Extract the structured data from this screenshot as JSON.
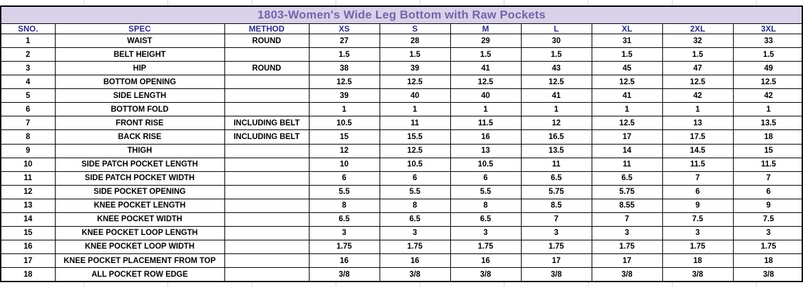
{
  "title": "1803-Women's Wide Leg Bottom with Raw Pockets",
  "colors": {
    "title_bg": "#d9d2e9",
    "title_text": "#7563a9",
    "header_text": "#2b2b86",
    "body_text": "#000000",
    "border": "#000000"
  },
  "table": {
    "columns": [
      "SNO.",
      "SPEC",
      "METHOD",
      "XS",
      "S",
      "M",
      "L",
      "XL",
      "2XL",
      "3XL"
    ],
    "rows": [
      {
        "sno": "1",
        "spec": "WAIST",
        "method": "ROUND",
        "values": [
          "27",
          "28",
          "29",
          "30",
          "31",
          "32",
          "33"
        ]
      },
      {
        "sno": "2",
        "spec": "BELT HEIGHT",
        "method": "",
        "values": [
          "1.5",
          "1.5",
          "1.5",
          "1.5",
          "1.5",
          "1.5",
          "1.5"
        ]
      },
      {
        "sno": "3",
        "spec": "HIP",
        "method": "ROUND",
        "values": [
          "38",
          "39",
          "41",
          "43",
          "45",
          "47",
          "49"
        ]
      },
      {
        "sno": "4",
        "spec": "BOTTOM OPENING",
        "method": "",
        "values": [
          "12.5",
          "12.5",
          "12.5",
          "12.5",
          "12.5",
          "12.5",
          "12.5"
        ]
      },
      {
        "sno": "5",
        "spec": "SIDE LENGTH",
        "method": "",
        "values": [
          "39",
          "40",
          "40",
          "41",
          "41",
          "42",
          "42"
        ]
      },
      {
        "sno": "6",
        "spec": "BOTTOM FOLD",
        "method": "",
        "values": [
          "1",
          "1",
          "1",
          "1",
          "1",
          "1",
          "1"
        ]
      },
      {
        "sno": "7",
        "spec": "FRONT RISE",
        "method": "INCLUDING BELT",
        "values": [
          "10.5",
          "11",
          "11.5",
          "12",
          "12.5",
          "13",
          "13.5"
        ]
      },
      {
        "sno": "8",
        "spec": "BACK RISE",
        "method": "INCLUDING BELT",
        "values": [
          "15",
          "15.5",
          "16",
          "16.5",
          "17",
          "17.5",
          "18"
        ]
      },
      {
        "sno": "9",
        "spec": "THIGH",
        "method": "",
        "values": [
          "12",
          "12.5",
          "13",
          "13.5",
          "14",
          "14.5",
          "15"
        ]
      },
      {
        "sno": "10",
        "spec": "SIDE PATCH  POCKET LENGTH",
        "method": "",
        "values": [
          "10",
          "10.5",
          "10.5",
          "11",
          "11",
          "11.5",
          "11.5"
        ]
      },
      {
        "sno": "11",
        "spec": "SIDE PATCH POCKET WIDTH",
        "method": "",
        "values": [
          "6",
          "6",
          "6",
          "6.5",
          "6.5",
          "7",
          "7"
        ]
      },
      {
        "sno": "12",
        "spec": "SIDE POCKET OPENING",
        "method": "",
        "values": [
          "5.5",
          "5.5",
          "5.5",
          "5.75",
          "5.75",
          "6",
          "6"
        ]
      },
      {
        "sno": "13",
        "spec": "KNEE POCKET LENGTH",
        "method": "",
        "values": [
          "8",
          "8",
          "8",
          "8.5",
          "8.55",
          "9",
          "9"
        ]
      },
      {
        "sno": "14",
        "spec": "KNEE POCKET WIDTH",
        "method": "",
        "values": [
          "6.5",
          "6.5",
          "6.5",
          "7",
          "7",
          "7.5",
          "7.5"
        ]
      },
      {
        "sno": "15",
        "spec": "KNEE POCKET LOOP LENGTH",
        "method": "",
        "values": [
          "3",
          "3",
          "3",
          "3",
          "3",
          "3",
          "3"
        ]
      },
      {
        "sno": "16",
        "spec": "KNEE POCKET LOOP WIDTH",
        "method": "",
        "values": [
          "1.75",
          "1.75",
          "1.75",
          "1.75",
          "1.75",
          "1.75",
          "1.75"
        ]
      },
      {
        "sno": "17",
        "spec": "KNEE POCKET PLACEMENT FROM TOP",
        "method": "",
        "values": [
          "16",
          "16",
          "16",
          "17",
          "17",
          "18",
          "18"
        ]
      },
      {
        "sno": "18",
        "spec": "ALL POCKET ROW EDGE",
        "method": "",
        "values": [
          "3/8",
          "3/8",
          "3/8",
          "3/8",
          "3/8",
          "3/8",
          "3/8"
        ]
      }
    ]
  }
}
